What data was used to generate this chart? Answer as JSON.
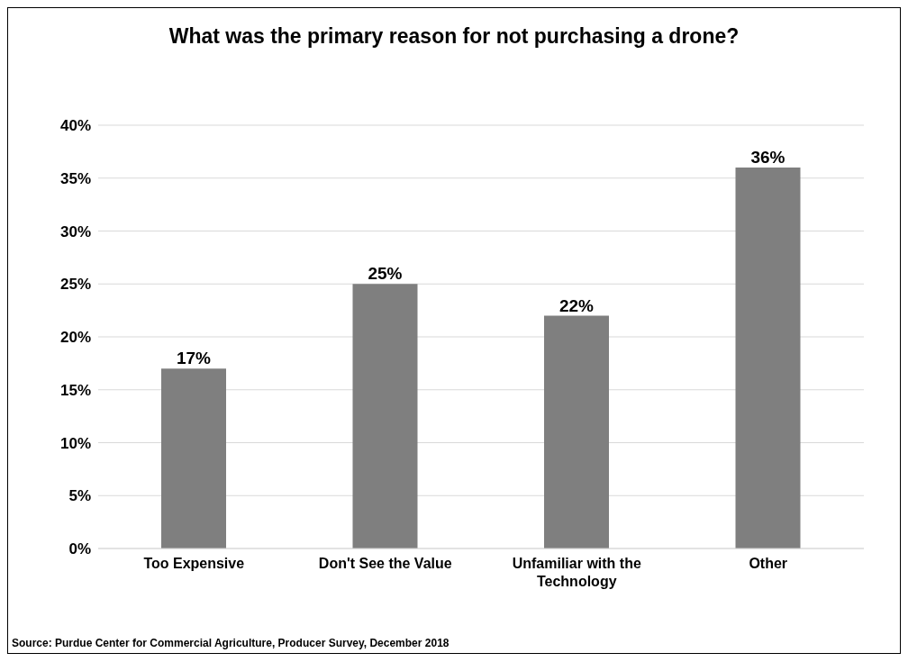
{
  "chart_data": {
    "type": "bar",
    "title": "What was the primary reason for not purchasing a drone?",
    "categories": [
      "Too Expensive",
      "Don't See the Value",
      "Unfamiliar with the Technology",
      "Other"
    ],
    "values": [
      17,
      25,
      22,
      36
    ],
    "value_labels": [
      "17%",
      "25%",
      "22%",
      "36%"
    ],
    "color": "#7f7f7f",
    "ylim": [
      0,
      40
    ],
    "yticks": [
      {
        "value": 0,
        "label": "0%"
      },
      {
        "value": 5,
        "label": "5%"
      },
      {
        "value": 10,
        "label": "10%"
      },
      {
        "value": 15,
        "label": "15%"
      },
      {
        "value": 20,
        "label": "20%"
      },
      {
        "value": 25,
        "label": "25%"
      },
      {
        "value": 30,
        "label": "30%"
      },
      {
        "value": 35,
        "label": "35%"
      },
      {
        "value": 40,
        "label": "40%"
      }
    ],
    "grid": "y",
    "legend": false,
    "annotations": [
      "Source: Purdue Center for Commercial Agriculture, Producer Survey, December 2018"
    ]
  }
}
